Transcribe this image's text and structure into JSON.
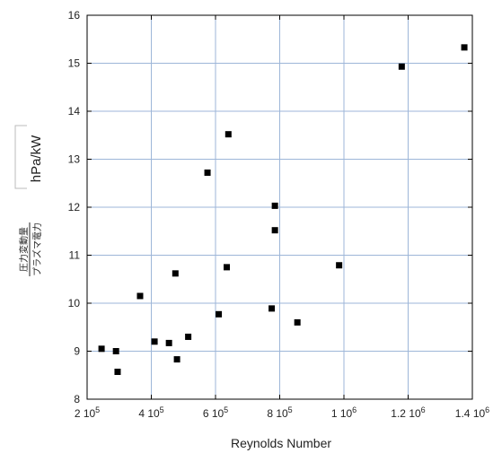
{
  "chart_data": {
    "type": "scatter",
    "xlabel": "Reynolds Number",
    "ylabel_numerator": "圧力変動量",
    "ylabel_denominator": "プラズマ電力",
    "ylabel_unit": "hPa/kW",
    "xlim": [
      200000,
      1400000
    ],
    "ylim": [
      8,
      16
    ],
    "grid": true,
    "x_tick_labels": [
      {
        "value": 200000,
        "base": "2 10",
        "exp": "5"
      },
      {
        "value": 400000,
        "base": "4 10",
        "exp": "5"
      },
      {
        "value": 600000,
        "base": "6 10",
        "exp": "5"
      },
      {
        "value": 800000,
        "base": "8 10",
        "exp": "5"
      },
      {
        "value": 1000000,
        "base": "1 10",
        "exp": "6"
      },
      {
        "value": 1200000,
        "base": "1.2 10",
        "exp": "6"
      },
      {
        "value": 1400000,
        "base": "1.4 10",
        "exp": "6"
      }
    ],
    "y_tick_labels": [
      "8",
      "9",
      "10",
      "11",
      "12",
      "13",
      "14",
      "15",
      "16"
    ],
    "marker_color": "#000000",
    "points": [
      {
        "x": 245000,
        "y": 9.05
      },
      {
        "x": 290000,
        "y": 9.0
      },
      {
        "x": 295000,
        "y": 8.57
      },
      {
        "x": 365000,
        "y": 10.15
      },
      {
        "x": 410000,
        "y": 9.2
      },
      {
        "x": 455000,
        "y": 9.17
      },
      {
        "x": 475000,
        "y": 10.62
      },
      {
        "x": 480000,
        "y": 8.83
      },
      {
        "x": 515000,
        "y": 9.3
      },
      {
        "x": 575000,
        "y": 12.72
      },
      {
        "x": 610000,
        "y": 9.77
      },
      {
        "x": 635000,
        "y": 10.75
      },
      {
        "x": 640000,
        "y": 13.52
      },
      {
        "x": 775000,
        "y": 9.89
      },
      {
        "x": 785000,
        "y": 12.03
      },
      {
        "x": 785000,
        "y": 11.52
      },
      {
        "x": 855000,
        "y": 9.6
      },
      {
        "x": 985000,
        "y": 10.79
      },
      {
        "x": 1180000,
        "y": 14.93
      },
      {
        "x": 1375000,
        "y": 15.33
      }
    ]
  }
}
